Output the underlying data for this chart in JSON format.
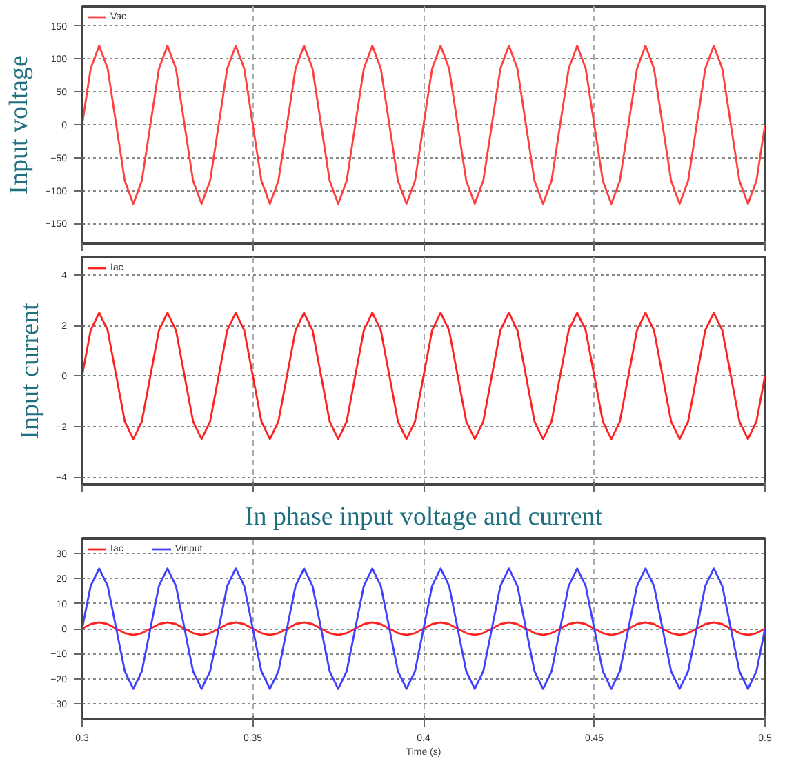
{
  "chart_data": [
    {
      "type": "line",
      "ylabel": "Input voltage",
      "tick_labels": "y",
      "grid": true,
      "legend": "top left",
      "x": [
        0.3,
        0.3025,
        0.305,
        0.3075,
        0.31,
        0.3125,
        0.315,
        0.3175,
        0.32,
        0.3225,
        0.325,
        0.3275,
        0.33,
        0.3325,
        0.335,
        0.3375,
        0.34,
        0.3425,
        0.345,
        0.3475,
        0.35,
        0.3525,
        0.355,
        0.3575,
        0.36,
        0.3625,
        0.365,
        0.3675,
        0.37,
        0.3725,
        0.375,
        0.3775,
        0.38,
        0.3825,
        0.385,
        0.3875,
        0.39,
        0.3925,
        0.395,
        0.3975,
        0.4,
        0.4025,
        0.405,
        0.4075,
        0.41,
        0.4125,
        0.415,
        0.4175,
        0.42,
        0.4225,
        0.425,
        0.4275,
        0.43,
        0.4325,
        0.435,
        0.4375,
        0.44,
        0.4425,
        0.445,
        0.4475,
        0.45,
        0.4525,
        0.455,
        0.4575,
        0.46,
        0.4625,
        0.465,
        0.4675,
        0.47,
        0.4725,
        0.475,
        0.4775,
        0.48,
        0.4825,
        0.485,
        0.4875,
        0.49,
        0.4925,
        0.495,
        0.4975,
        0.5
      ],
      "series": [
        {
          "name": "Vac",
          "color": "#ff4040",
          "values": [
            0,
            85,
            120,
            85,
            0,
            -85,
            -120,
            -85,
            0,
            85,
            120,
            85,
            0,
            -85,
            -120,
            -85,
            0,
            85,
            120,
            85,
            0,
            -85,
            -120,
            -85,
            0,
            85,
            120,
            85,
            0,
            -85,
            -120,
            -85,
            0,
            85,
            120,
            85,
            0,
            -85,
            -120,
            -85,
            0,
            85,
            120,
            85,
            0,
            -85,
            -120,
            -85,
            0,
            85,
            120,
            85,
            0,
            -85,
            -120,
            -85,
            0,
            85,
            120,
            85,
            0,
            -85,
            -120,
            -85,
            0,
            85,
            120,
            85,
            0,
            -85,
            -120,
            -85,
            0,
            85,
            120,
            85,
            0,
            -85,
            -120,
            -85,
            0
          ]
        }
      ],
      "xlim": [
        0.3,
        0.5
      ],
      "xticks": [
        0.3,
        0.35,
        0.4,
        0.45,
        0.5
      ],
      "ylim": [
        -180,
        180
      ],
      "yticks": [
        -150,
        -100,
        -50,
        0,
        50,
        100,
        150
      ]
    },
    {
      "type": "line",
      "ylabel": "Input current",
      "tick_labels": "y",
      "grid": true,
      "legend": "top left",
      "x": [
        0.3,
        0.3025,
        0.305,
        0.3075,
        0.31,
        0.3125,
        0.315,
        0.3175,
        0.32,
        0.3225,
        0.325,
        0.3275,
        0.33,
        0.3325,
        0.335,
        0.3375,
        0.34,
        0.3425,
        0.345,
        0.3475,
        0.35,
        0.3525,
        0.355,
        0.3575,
        0.36,
        0.3625,
        0.365,
        0.3675,
        0.37,
        0.3725,
        0.375,
        0.3775,
        0.38,
        0.3825,
        0.385,
        0.3875,
        0.39,
        0.3925,
        0.395,
        0.3975,
        0.4,
        0.4025,
        0.405,
        0.4075,
        0.41,
        0.4125,
        0.415,
        0.4175,
        0.42,
        0.4225,
        0.425,
        0.4275,
        0.43,
        0.4325,
        0.435,
        0.4375,
        0.44,
        0.4425,
        0.445,
        0.4475,
        0.45,
        0.4525,
        0.455,
        0.4575,
        0.46,
        0.4625,
        0.465,
        0.4675,
        0.47,
        0.4725,
        0.475,
        0.4775,
        0.48,
        0.4825,
        0.485,
        0.4875,
        0.49,
        0.4925,
        0.495,
        0.4975,
        0.5
      ],
      "series": [
        {
          "name": "Iac",
          "color": "#ff2020",
          "values": [
            0,
            1.8,
            2.5,
            1.8,
            0,
            -1.8,
            -2.5,
            -1.8,
            0,
            1.8,
            2.5,
            1.8,
            0,
            -1.8,
            -2.5,
            -1.8,
            0,
            1.8,
            2.5,
            1.8,
            0,
            -1.8,
            -2.5,
            -1.8,
            0,
            1.8,
            2.5,
            1.8,
            0,
            -1.8,
            -2.5,
            -1.8,
            0,
            1.8,
            2.5,
            1.8,
            0,
            -1.8,
            -2.5,
            -1.8,
            0,
            1.8,
            2.5,
            1.8,
            0,
            -1.8,
            -2.5,
            -1.8,
            0,
            1.8,
            2.5,
            1.8,
            0,
            -1.8,
            -2.5,
            -1.8,
            0,
            1.8,
            2.5,
            1.8,
            0,
            -1.8,
            -2.5,
            -1.8,
            0,
            1.8,
            2.5,
            1.8,
            0,
            -1.8,
            -2.5,
            -1.8,
            0,
            1.8,
            2.5,
            1.8,
            0,
            -1.8,
            -2.5,
            -1.8,
            0
          ]
        }
      ],
      "xlim": [
        0.3,
        0.5
      ],
      "xticks": [
        0.3,
        0.35,
        0.4,
        0.45,
        0.5
      ],
      "ylim": [
        -4.3,
        4.7
      ],
      "yticks": [
        -4,
        -2,
        0,
        2,
        4
      ]
    },
    {
      "type": "line",
      "title": "In phase input voltage and current",
      "xlabel": "Time (s)",
      "grid": true,
      "legend": "top left",
      "x": [
        0.3,
        0.3025,
        0.305,
        0.3075,
        0.31,
        0.3125,
        0.315,
        0.3175,
        0.32,
        0.3225,
        0.325,
        0.3275,
        0.33,
        0.3325,
        0.335,
        0.3375,
        0.34,
        0.3425,
        0.345,
        0.3475,
        0.35,
        0.3525,
        0.355,
        0.3575,
        0.36,
        0.3625,
        0.365,
        0.3675,
        0.37,
        0.3725,
        0.375,
        0.3775,
        0.38,
        0.3825,
        0.385,
        0.3875,
        0.39,
        0.3925,
        0.395,
        0.3975,
        0.4,
        0.4025,
        0.405,
        0.4075,
        0.41,
        0.4125,
        0.415,
        0.4175,
        0.42,
        0.4225,
        0.425,
        0.4275,
        0.43,
        0.4325,
        0.435,
        0.4375,
        0.44,
        0.4425,
        0.445,
        0.4475,
        0.45,
        0.4525,
        0.455,
        0.4575,
        0.46,
        0.4625,
        0.465,
        0.4675,
        0.47,
        0.4725,
        0.475,
        0.4775,
        0.48,
        0.4825,
        0.485,
        0.4875,
        0.49,
        0.4925,
        0.495,
        0.4975,
        0.5
      ],
      "series": [
        {
          "name": "Iac",
          "color": "#ff2020",
          "values": [
            0,
            1.8,
            2.5,
            1.8,
            0,
            -1.8,
            -2.5,
            -1.8,
            0,
            1.8,
            2.5,
            1.8,
            0,
            -1.8,
            -2.5,
            -1.8,
            0,
            1.8,
            2.5,
            1.8,
            0,
            -1.8,
            -2.5,
            -1.8,
            0,
            1.8,
            2.5,
            1.8,
            0,
            -1.8,
            -2.5,
            -1.8,
            0,
            1.8,
            2.5,
            1.8,
            0,
            -1.8,
            -2.5,
            -1.8,
            0,
            1.8,
            2.5,
            1.8,
            0,
            -1.8,
            -2.5,
            -1.8,
            0,
            1.8,
            2.5,
            1.8,
            0,
            -1.8,
            -2.5,
            -1.8,
            0,
            1.8,
            2.5,
            1.8,
            0,
            -1.8,
            -2.5,
            -1.8,
            0,
            1.8,
            2.5,
            1.8,
            0,
            -1.8,
            -2.5,
            -1.8,
            0,
            1.8,
            2.5,
            1.8,
            0,
            -1.8,
            -2.5,
            -1.8,
            0
          ]
        },
        {
          "name": "Vinput",
          "color": "#4040ff",
          "values": [
            0,
            17,
            24,
            17,
            0,
            -17,
            -24,
            -17,
            0,
            17,
            24,
            17,
            0,
            -17,
            -24,
            -17,
            0,
            17,
            24,
            17,
            0,
            -17,
            -24,
            -17,
            0,
            17,
            24,
            17,
            0,
            -17,
            -24,
            -17,
            0,
            17,
            24,
            17,
            0,
            -17,
            -24,
            -17,
            0,
            17,
            24,
            17,
            0,
            -17,
            -24,
            -17,
            0,
            17,
            24,
            17,
            0,
            -17,
            -24,
            -17,
            0,
            17,
            24,
            17,
            0,
            -17,
            -24,
            -17,
            0,
            17,
            24,
            17,
            0,
            -17,
            -24,
            -17,
            0,
            17,
            24,
            17,
            0,
            -17,
            -24,
            -17,
            0
          ]
        }
      ],
      "xlim": [
        0.3,
        0.5
      ],
      "xticks": [
        0.3,
        0.35,
        0.4,
        0.45,
        0.5
      ],
      "ylim": [
        -36,
        36
      ],
      "yticks": [
        -30,
        -20,
        -10,
        0,
        10,
        20,
        30
      ]
    }
  ]
}
